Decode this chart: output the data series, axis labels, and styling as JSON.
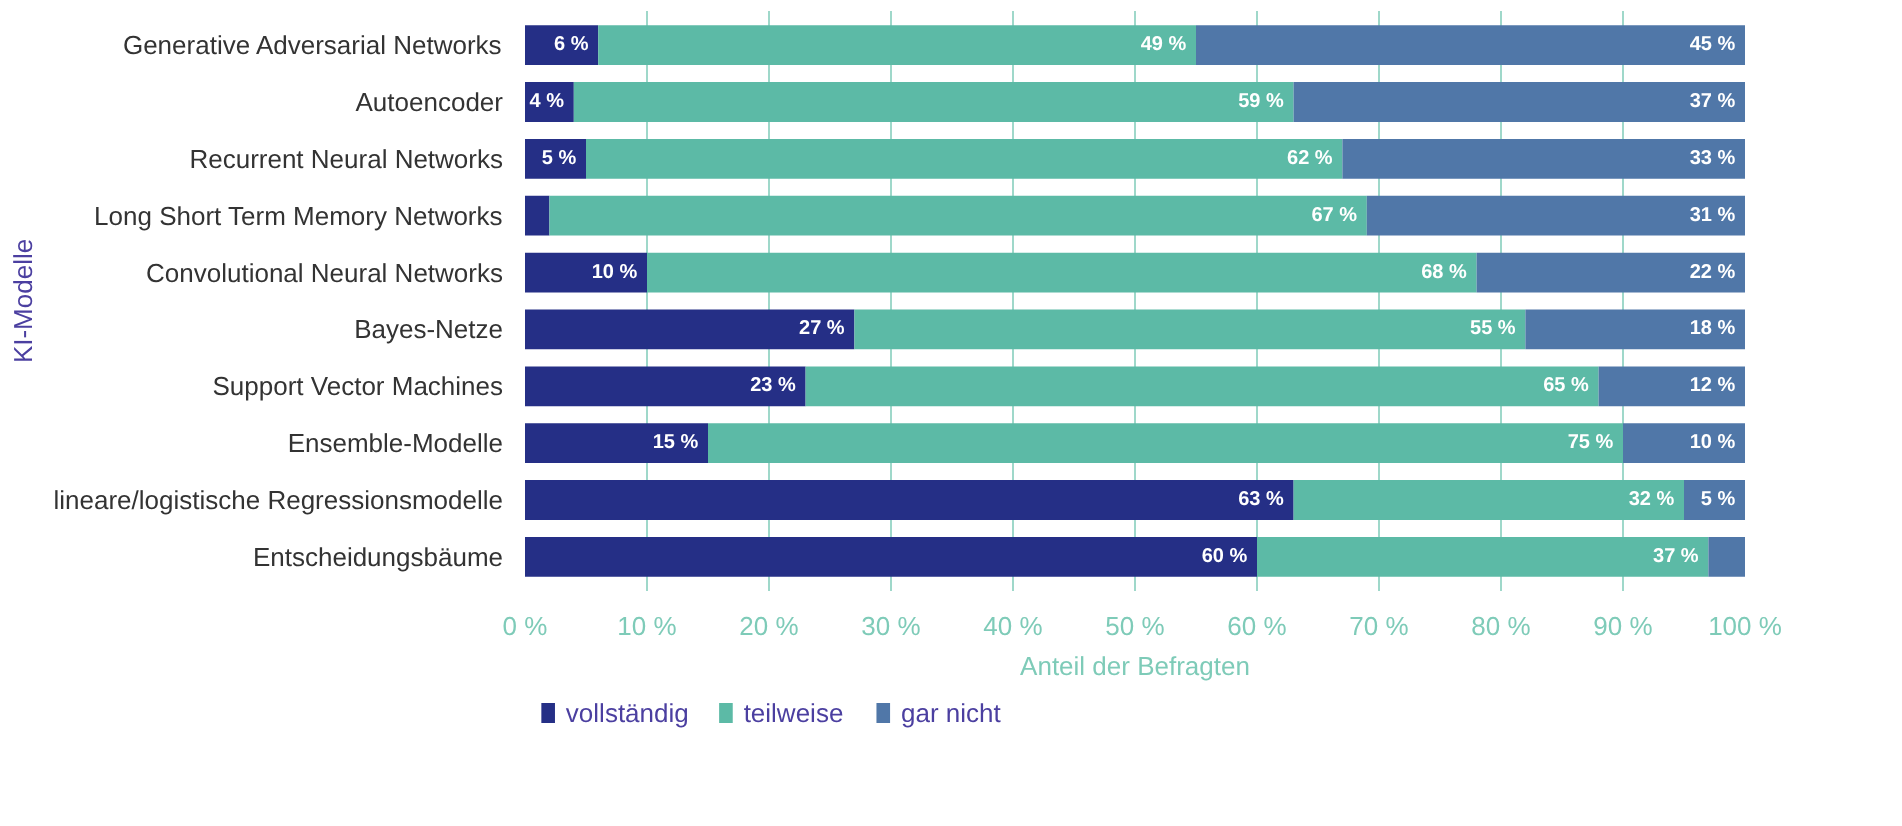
{
  "chart_data": {
    "type": "bar",
    "orientation": "horizontal",
    "stacked": true,
    "xlabel": "Anteil der Befragten",
    "ylabel": "KI-Modelle",
    "categories": [
      "Generative Adversarial Networks",
      "Autoencoder",
      "Recurrent Neural Networks",
      "Long Short Term Memory Networks",
      "Convolutional Neural Networks",
      "Bayes-Netze",
      "Support Vector Machines",
      "Ensemble-Modelle",
      "lineare/logistische Regressionsmodelle",
      "Entscheidungsbäume"
    ],
    "series": [
      {
        "name": "vollständig",
        "color": "#252f86",
        "values": [
          6,
          4,
          5,
          2,
          10,
          27,
          23,
          15,
          63,
          60
        ],
        "value_labels": [
          "6 %",
          "4 %",
          "5 %",
          null,
          "10 %",
          "27 %",
          "23 %",
          "15 %",
          "63 %",
          "60 %"
        ]
      },
      {
        "name": "teilweise",
        "color": "#5cbaa6",
        "values": [
          49,
          59,
          62,
          67,
          68,
          55,
          65,
          75,
          32,
          37
        ],
        "value_labels": [
          "49 %",
          "59 %",
          "62 %",
          "67 %",
          "68 %",
          "55 %",
          "65 %",
          "75 %",
          "32 %",
          "37 %"
        ]
      },
      {
        "name": "gar nicht",
        "color": "#5077a8",
        "values": [
          45,
          37,
          33,
          31,
          22,
          18,
          12,
          10,
          5,
          3
        ],
        "value_labels": [
          "45 %",
          "37 %",
          "33 %",
          "31 %",
          "22 %",
          "18 %",
          "12 %",
          "10 %",
          "5 %",
          null
        ]
      }
    ],
    "xlim": [
      0,
      100
    ],
    "xticks": [
      {
        "value": 0,
        "label": "0 %"
      },
      {
        "value": 10,
        "label": "10 %"
      },
      {
        "value": 20,
        "label": "20 %"
      },
      {
        "value": 30,
        "label": "30 %"
      },
      {
        "value": 40,
        "label": "40 %"
      },
      {
        "value": 50,
        "label": "50 %"
      },
      {
        "value": 60,
        "label": "60 %"
      },
      {
        "value": 70,
        "label": "70 %"
      },
      {
        "value": 80,
        "label": "80 %"
      },
      {
        "value": 90,
        "label": "90 %"
      },
      {
        "value": 100,
        "label": "100 %"
      }
    ],
    "grid": "x",
    "legend": "bottom left"
  }
}
